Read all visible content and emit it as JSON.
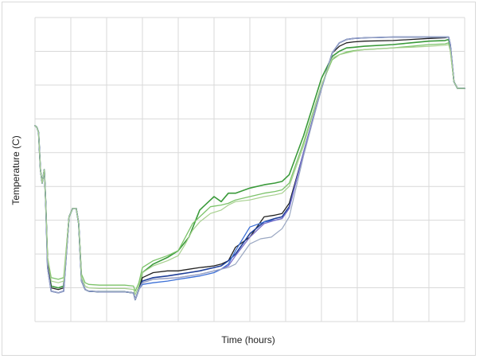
{
  "chart_data": {
    "type": "line",
    "title": "",
    "xlabel": "Time (hours)",
    "ylabel": "Temperature (C)",
    "xlim": [
      0,
      12
    ],
    "ylim": [
      0,
      9
    ],
    "grid": true,
    "x_tick_labels_visible": false,
    "y_tick_labels_visible": false,
    "legend": "none",
    "series": [
      {
        "color": "#3a9a3a",
        "width": 1.6,
        "x": [
          0,
          0.05,
          0.1,
          0.15,
          0.2,
          0.26,
          0.3,
          0.35,
          0.45,
          0.65,
          0.8,
          0.95,
          1.05,
          1.15,
          1.22,
          1.3,
          1.4,
          1.5,
          1.8,
          2.5,
          2.75,
          2.8,
          2.9,
          3.0,
          3.3,
          3.7,
          4.0,
          4.3,
          4.6,
          4.8,
          5.0,
          5.2,
          5.4,
          5.6,
          6.0,
          6.4,
          6.7,
          6.9,
          7.1,
          7.5,
          8.0,
          8.3,
          8.5,
          8.7,
          8.9,
          9.2,
          10.0,
          10.5,
          11.0,
          11.45,
          11.55,
          11.6,
          11.7,
          11.8,
          12
        ],
        "values": [
          5.8,
          5.75,
          5.6,
          4.5,
          4.1,
          4.5,
          3.5,
          1.8,
          1.05,
          1.0,
          1.05,
          3.1,
          3.35,
          3.35,
          2.9,
          1.2,
          0.95,
          0.9,
          0.88,
          0.88,
          0.85,
          0.65,
          0.95,
          1.45,
          1.7,
          1.9,
          2.1,
          2.5,
          3.3,
          3.5,
          3.7,
          3.55,
          3.8,
          3.8,
          3.95,
          4.05,
          4.1,
          4.15,
          4.35,
          5.5,
          7.2,
          7.85,
          8.0,
          8.1,
          8.12,
          8.15,
          8.2,
          8.25,
          8.3,
          8.32,
          8.35,
          8.1,
          7.1,
          6.9,
          6.9
        ]
      },
      {
        "color": "#7cc36a",
        "width": 1.3,
        "x": [
          0,
          0.05,
          0.1,
          0.15,
          0.2,
          0.26,
          0.3,
          0.35,
          0.45,
          0.65,
          0.8,
          0.95,
          1.05,
          1.15,
          1.22,
          1.3,
          1.4,
          1.5,
          1.8,
          2.5,
          2.75,
          2.8,
          2.9,
          3.0,
          3.3,
          3.7,
          4.0,
          4.2,
          4.4,
          4.6,
          4.9,
          5.2,
          5.4,
          5.6,
          6.0,
          6.4,
          6.7,
          6.9,
          7.1,
          7.5,
          8.0,
          8.3,
          8.5,
          8.7,
          8.9,
          9.2,
          10.0,
          10.5,
          11.0,
          11.45,
          11.55,
          11.6,
          11.7,
          11.8,
          12
        ],
        "values": [
          5.8,
          5.75,
          5.6,
          4.5,
          4.1,
          4.5,
          3.5,
          1.9,
          1.3,
          1.25,
          1.3,
          3.1,
          3.35,
          3.35,
          2.9,
          1.4,
          1.15,
          1.1,
          1.08,
          1.08,
          1.05,
          0.9,
          1.15,
          1.6,
          1.8,
          1.95,
          2.1,
          2.5,
          2.9,
          3.1,
          3.4,
          3.45,
          3.5,
          3.6,
          3.7,
          3.8,
          3.85,
          3.9,
          4.1,
          5.3,
          7.0,
          7.75,
          7.9,
          7.98,
          8.02,
          8.05,
          8.1,
          8.15,
          8.2,
          8.22,
          8.25,
          8.0,
          7.1,
          6.9,
          6.9
        ]
      },
      {
        "color": "#222222",
        "width": 1.3,
        "x": [
          0,
          0.05,
          0.1,
          0.15,
          0.2,
          0.26,
          0.3,
          0.35,
          0.45,
          0.65,
          0.8,
          0.95,
          1.05,
          1.15,
          1.22,
          1.3,
          1.4,
          1.5,
          1.8,
          2.5,
          2.75,
          2.8,
          2.9,
          3.0,
          3.3,
          3.7,
          4.0,
          4.3,
          4.6,
          4.8,
          5.0,
          5.2,
          5.4,
          5.6,
          6.0,
          6.4,
          6.7,
          6.9,
          7.1,
          7.5,
          8.0,
          8.3,
          8.5,
          8.7,
          8.9,
          9.2,
          10.0,
          10.5,
          11.0,
          11.45,
          11.55,
          11.6,
          11.7,
          11.8,
          12
        ],
        "values": [
          5.8,
          5.75,
          5.6,
          4.5,
          4.1,
          4.5,
          3.5,
          1.8,
          1.0,
          0.95,
          1.0,
          3.1,
          3.35,
          3.35,
          2.9,
          1.2,
          0.95,
          0.9,
          0.88,
          0.88,
          0.85,
          0.65,
          0.95,
          1.3,
          1.45,
          1.5,
          1.5,
          1.55,
          1.6,
          1.62,
          1.65,
          1.7,
          1.8,
          2.2,
          2.5,
          3.1,
          3.15,
          3.2,
          3.5,
          5.0,
          6.9,
          7.95,
          8.15,
          8.25,
          8.28,
          8.3,
          8.32,
          8.35,
          8.38,
          8.4,
          8.42,
          8.2,
          7.1,
          6.9,
          6.9
        ]
      },
      {
        "color": "#1f3f99",
        "width": 1.6,
        "x": [
          0,
          0.05,
          0.1,
          0.15,
          0.2,
          0.26,
          0.3,
          0.35,
          0.45,
          0.65,
          0.8,
          0.95,
          1.05,
          1.15,
          1.22,
          1.3,
          1.4,
          1.5,
          1.8,
          2.5,
          2.75,
          2.8,
          2.9,
          3.0,
          3.3,
          3.7,
          4.0,
          4.3,
          4.6,
          4.8,
          5.0,
          5.2,
          5.4,
          5.6,
          6.0,
          6.4,
          6.7,
          6.9,
          7.1,
          7.5,
          8.0,
          8.3,
          8.5,
          8.7,
          8.9,
          9.2,
          10.0,
          10.5,
          11.0,
          11.45,
          11.55,
          11.6,
          11.7,
          11.8,
          12
        ],
        "values": [
          5.8,
          5.75,
          5.6,
          4.5,
          4.1,
          4.5,
          3.5,
          1.6,
          0.9,
          0.85,
          0.9,
          3.1,
          3.35,
          3.35,
          2.9,
          1.2,
          0.95,
          0.9,
          0.88,
          0.88,
          0.85,
          0.65,
          0.95,
          1.2,
          1.3,
          1.35,
          1.4,
          1.45,
          1.5,
          1.55,
          1.6,
          1.65,
          1.8,
          2.0,
          2.6,
          2.95,
          3.05,
          3.1,
          3.4,
          5.0,
          6.9,
          7.95,
          8.25,
          8.35,
          8.38,
          8.4,
          8.42,
          8.42,
          8.42,
          8.42,
          8.42,
          8.2,
          7.1,
          6.9,
          6.9
        ]
      },
      {
        "color": "#3b6fd6",
        "width": 1.3,
        "x": [
          0,
          0.05,
          0.1,
          0.15,
          0.2,
          0.26,
          0.3,
          0.35,
          0.45,
          0.65,
          0.8,
          0.95,
          1.05,
          1.15,
          1.22,
          1.3,
          1.4,
          1.5,
          1.8,
          2.5,
          2.75,
          2.8,
          2.9,
          3.0,
          3.3,
          3.7,
          4.0,
          4.3,
          4.6,
          4.8,
          5.0,
          5.2,
          5.4,
          5.6,
          6.0,
          6.4,
          6.7,
          6.9,
          7.1,
          7.5,
          8.0,
          8.3,
          8.5,
          8.7,
          8.9,
          9.2,
          10.0,
          10.5,
          11.0,
          11.45,
          11.55,
          11.6,
          11.7,
          11.8,
          12
        ],
        "values": [
          5.8,
          5.75,
          5.6,
          4.5,
          4.1,
          4.5,
          3.5,
          1.6,
          0.9,
          0.85,
          0.9,
          3.1,
          3.35,
          3.35,
          2.9,
          1.2,
          0.95,
          0.9,
          0.88,
          0.88,
          0.85,
          0.65,
          0.95,
          1.1,
          1.15,
          1.2,
          1.25,
          1.3,
          1.35,
          1.4,
          1.45,
          1.55,
          1.7,
          2.1,
          2.8,
          2.95,
          3.0,
          3.05,
          3.35,
          5.0,
          6.9,
          7.95,
          8.25,
          8.35,
          8.38,
          8.4,
          8.42,
          8.42,
          8.42,
          8.42,
          8.42,
          8.2,
          7.1,
          6.9,
          6.9
        ]
      },
      {
        "color": "#7a6fc8",
        "width": 1.3,
        "x": [
          0,
          0.05,
          0.1,
          0.15,
          0.2,
          0.26,
          0.3,
          0.35,
          0.45,
          0.65,
          0.8,
          0.95,
          1.05,
          1.15,
          1.22,
          1.3,
          1.4,
          1.5,
          1.8,
          2.5,
          2.75,
          2.8,
          2.9,
          3.0,
          3.3,
          3.7,
          4.0,
          4.3,
          4.6,
          4.8,
          5.0,
          5.2,
          5.4,
          5.6,
          6.0,
          6.4,
          6.7,
          6.9,
          7.1,
          7.5,
          8.0,
          8.3,
          8.5,
          8.7,
          8.9,
          9.2,
          10.0,
          10.5,
          11.0,
          11.45,
          11.55,
          11.6,
          11.7,
          11.8,
          12
        ],
        "values": [
          5.8,
          5.75,
          5.6,
          4.5,
          4.1,
          4.5,
          3.5,
          1.6,
          0.9,
          0.85,
          0.9,
          3.1,
          3.35,
          3.35,
          2.9,
          1.2,
          0.95,
          0.9,
          0.88,
          0.88,
          0.85,
          0.65,
          0.95,
          1.15,
          1.25,
          1.28,
          1.3,
          1.35,
          1.4,
          1.45,
          1.5,
          1.55,
          1.65,
          1.95,
          2.5,
          2.9,
          3.0,
          3.05,
          3.35,
          5.0,
          6.9,
          7.95,
          8.25,
          8.35,
          8.38,
          8.4,
          8.42,
          8.42,
          8.42,
          8.42,
          8.42,
          8.2,
          7.1,
          6.9,
          6.9
        ]
      },
      {
        "color": "#9aa7c2",
        "width": 1.2,
        "x": [
          0,
          0.05,
          0.1,
          0.15,
          0.2,
          0.26,
          0.3,
          0.35,
          0.45,
          0.65,
          0.8,
          0.95,
          1.05,
          1.15,
          1.22,
          1.3,
          1.4,
          1.5,
          1.8,
          2.5,
          2.75,
          2.8,
          2.9,
          3.0,
          3.3,
          3.7,
          4.0,
          4.3,
          4.6,
          4.8,
          5.0,
          5.2,
          5.4,
          5.6,
          5.8,
          6.0,
          6.3,
          6.6,
          6.9,
          7.1,
          7.5,
          8.0,
          8.3,
          8.5,
          8.7,
          8.9,
          9.2,
          10.0,
          10.5,
          11.0,
          11.45,
          11.55,
          11.6,
          11.7,
          11.8,
          12
        ],
        "values": [
          5.8,
          5.75,
          5.6,
          4.5,
          4.1,
          4.5,
          3.5,
          1.6,
          0.9,
          0.85,
          0.9,
          3.1,
          3.35,
          3.35,
          2.9,
          1.2,
          0.95,
          0.9,
          0.88,
          0.88,
          0.85,
          0.65,
          0.95,
          1.15,
          1.25,
          1.28,
          1.3,
          1.35,
          1.4,
          1.45,
          1.5,
          1.55,
          1.6,
          1.7,
          2.0,
          2.3,
          2.45,
          2.5,
          2.75,
          3.1,
          4.9,
          6.9,
          7.95,
          8.25,
          8.35,
          8.38,
          8.4,
          8.42,
          8.42,
          8.42,
          8.42,
          8.42,
          8.2,
          7.1,
          6.9,
          6.9
        ]
      },
      {
        "color": "#a7d08f",
        "width": 1.2,
        "x": [
          0,
          0.05,
          0.1,
          0.15,
          0.2,
          0.26,
          0.3,
          0.35,
          0.45,
          0.65,
          0.8,
          0.95,
          1.05,
          1.15,
          1.22,
          1.3,
          1.4,
          1.5,
          1.8,
          2.5,
          2.75,
          2.8,
          2.9,
          3.0,
          3.3,
          3.7,
          4.0,
          4.2,
          4.4,
          4.6,
          4.9,
          5.2,
          5.4,
          5.6,
          6.0,
          6.4,
          6.7,
          6.9,
          7.1,
          7.5,
          8.0,
          8.3,
          8.5,
          8.7,
          8.9,
          9.2,
          10.0,
          10.5,
          11.0,
          11.45,
          11.55,
          11.6,
          11.7,
          11.8,
          12
        ],
        "values": [
          5.8,
          5.75,
          5.6,
          4.5,
          4.1,
          4.5,
          3.5,
          1.9,
          1.2,
          1.15,
          1.2,
          3.1,
          3.35,
          3.35,
          2.9,
          1.3,
          1.05,
          1.0,
          0.98,
          0.98,
          0.95,
          0.8,
          1.05,
          1.45,
          1.65,
          1.8,
          1.95,
          2.3,
          2.7,
          2.95,
          3.2,
          3.3,
          3.45,
          3.55,
          3.6,
          3.7,
          3.75,
          3.8,
          4.0,
          5.2,
          7.0,
          7.8,
          7.9,
          7.95,
          8.0,
          8.05,
          8.1,
          8.12,
          8.15,
          8.18,
          8.2,
          8.0,
          7.1,
          6.9,
          6.9
        ]
      }
    ]
  }
}
